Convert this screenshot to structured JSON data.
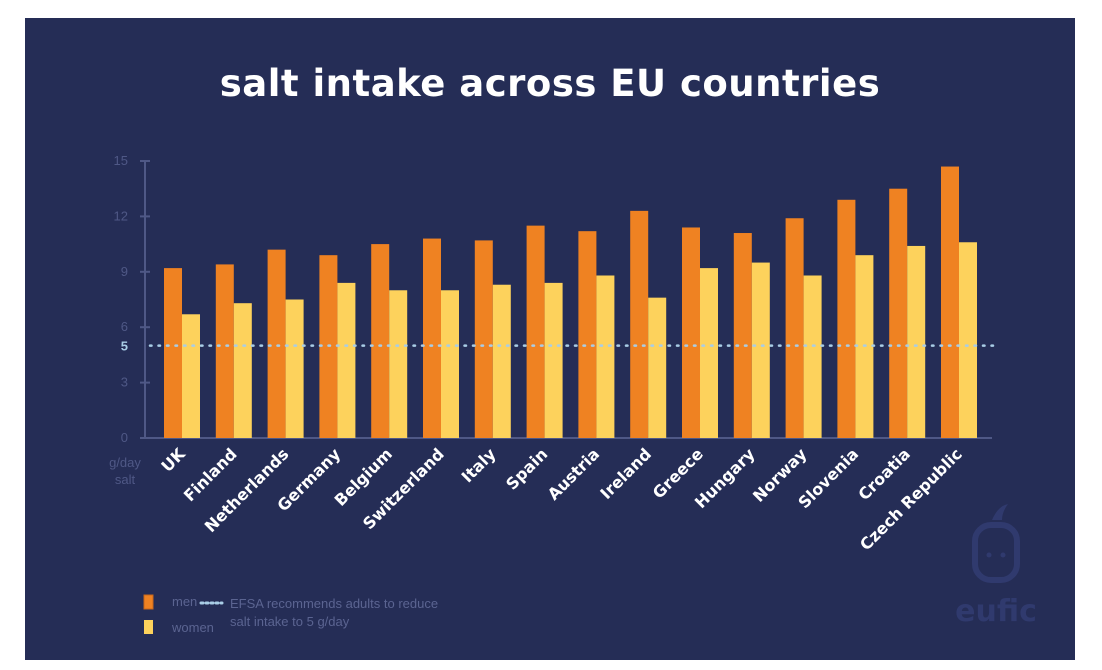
{
  "chart_data": {
    "type": "bar",
    "title": "salt intake across EU countries",
    "ylabel": "g/day salt",
    "ylim": [
      0,
      15
    ],
    "yticks": [
      0,
      3,
      6,
      9,
      12,
      15
    ],
    "reference_line": {
      "value": 5,
      "label": "5",
      "style": "dotted",
      "color": "#a9cde6",
      "legend": "EFSA recommends adults to reduce salt intake to 5 g/day"
    },
    "categories": [
      "UK",
      "Finland",
      "Netherlands",
      "Germany",
      "Belgium",
      "Switzerland",
      "Italy",
      "Spain",
      "Austria",
      "Ireland",
      "Greece",
      "Hungary",
      "Norway",
      "Slovenia",
      "Croatia",
      "Czech Republic"
    ],
    "series": [
      {
        "name": "men",
        "color": "#ef8222",
        "values": [
          9.2,
          9.4,
          10.2,
          9.9,
          10.5,
          10.8,
          10.7,
          11.5,
          11.2,
          12.3,
          11.4,
          11.1,
          11.9,
          12.9,
          13.5,
          14.7
        ]
      },
      {
        "name": "women",
        "color": "#fdd25c",
        "values": [
          6.7,
          7.3,
          7.5,
          8.4,
          8.0,
          8.0,
          8.3,
          8.4,
          8.8,
          7.6,
          9.2,
          9.5,
          8.8,
          9.9,
          10.4,
          10.6
        ]
      }
    ],
    "legend": "bottom-left",
    "grid": false
  },
  "legend_ref_lines": [
    "EFSA recommends adults to reduce",
    "salt intake to 5 g/day"
  ],
  "ylabel_lines": [
    "g/day",
    "salt"
  ],
  "logo": "eufic",
  "background": "#252d56"
}
